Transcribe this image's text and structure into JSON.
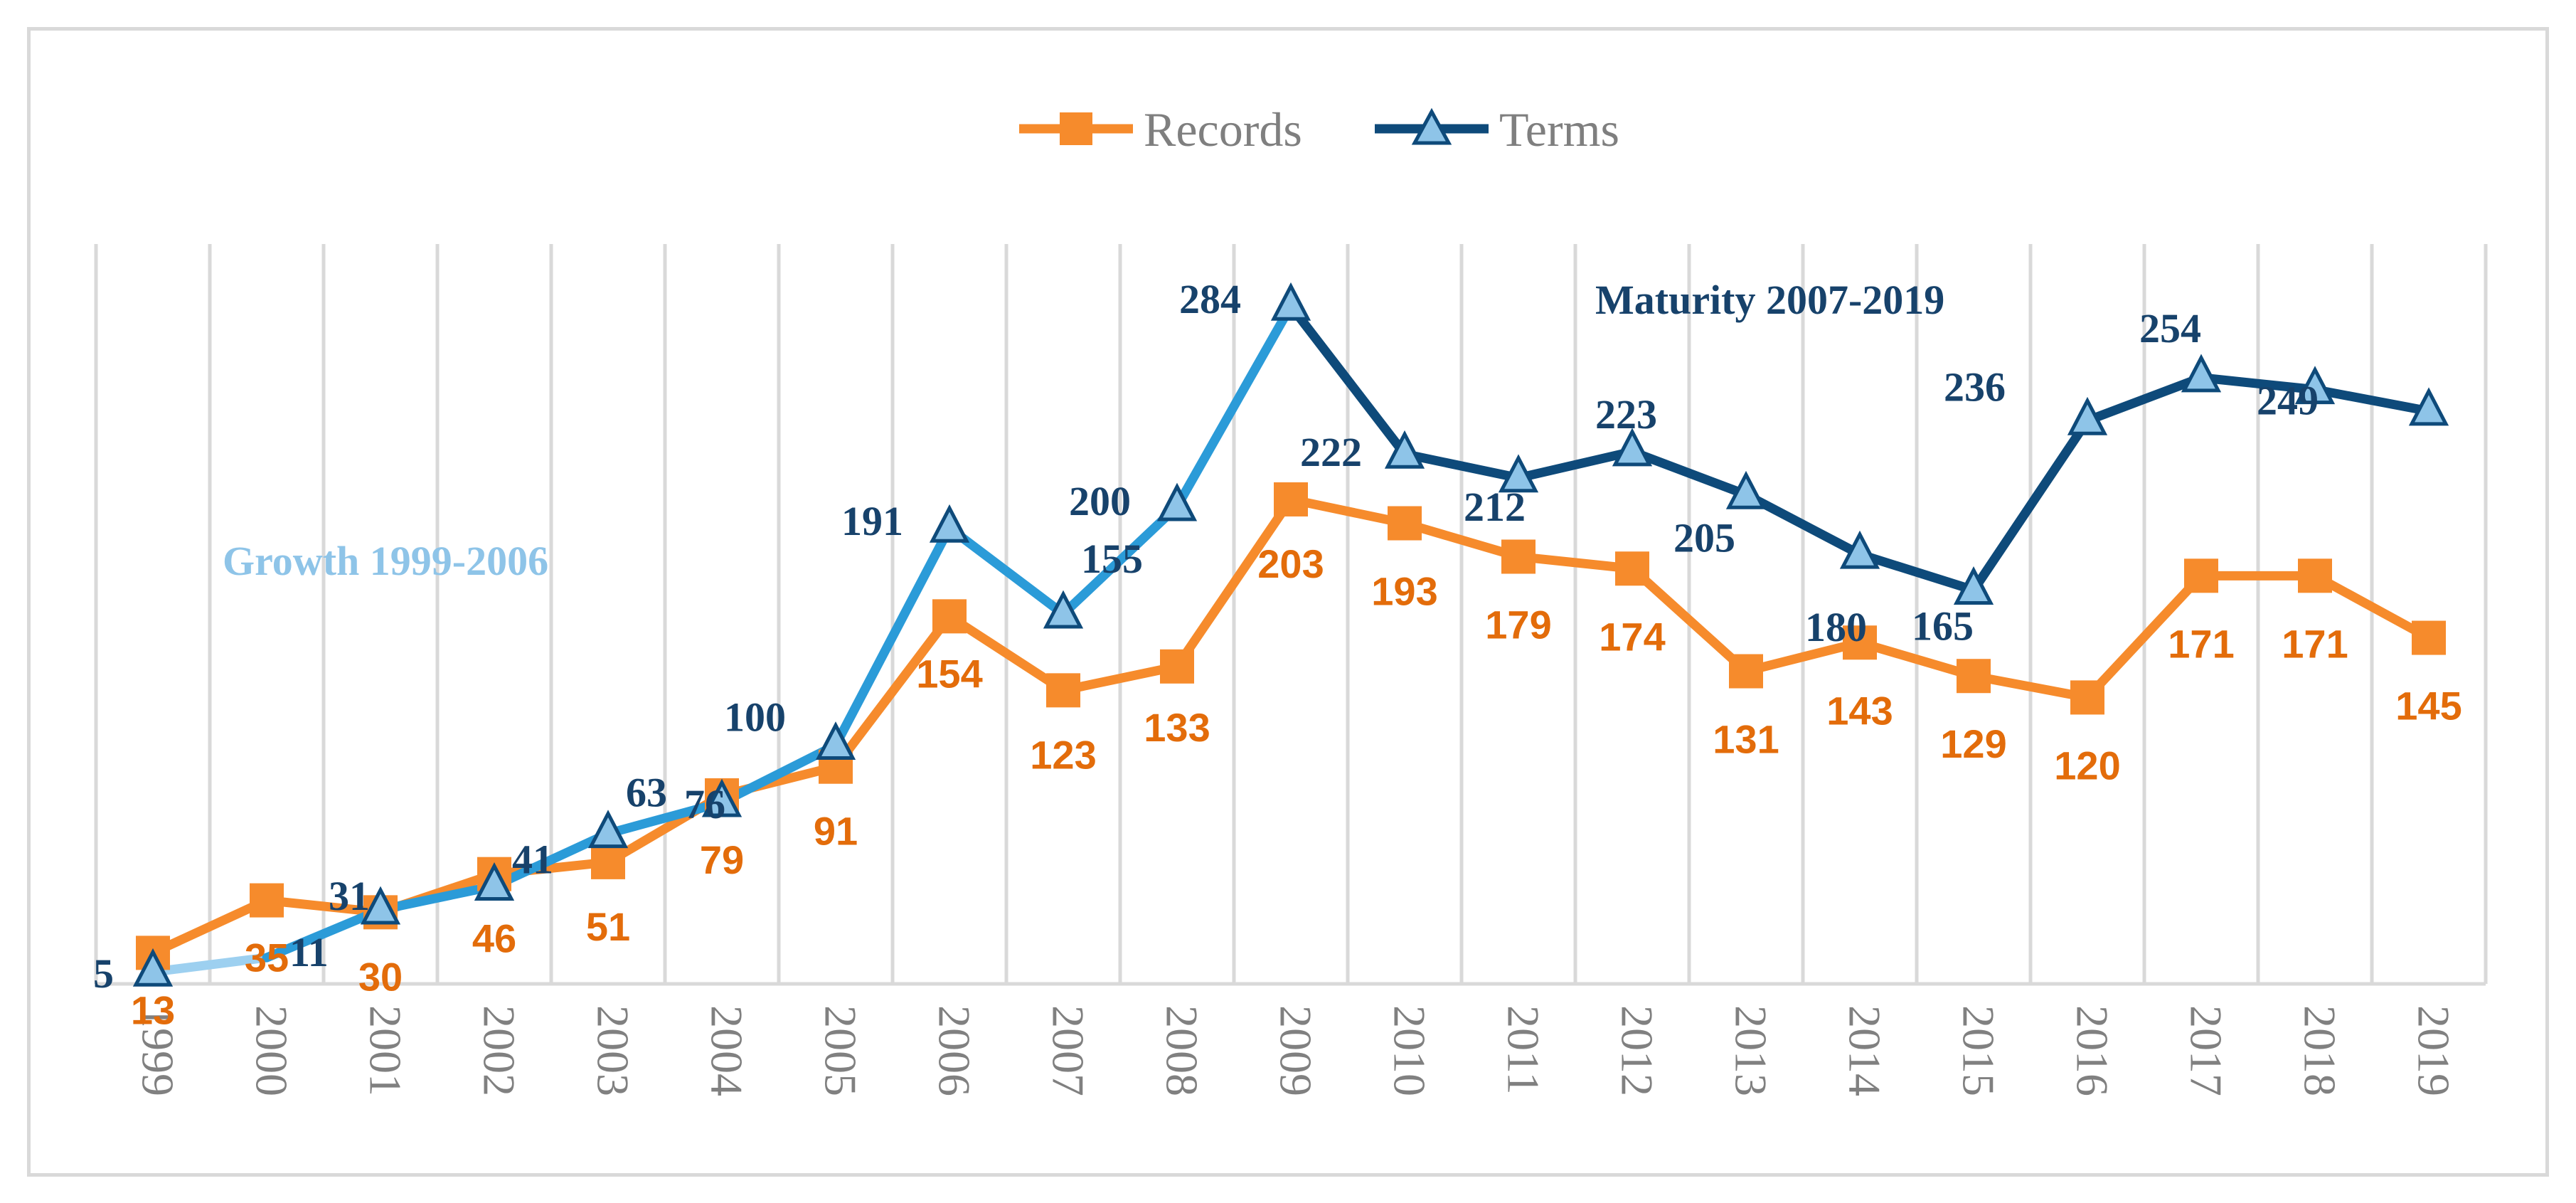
{
  "chart_data": {
    "type": "line",
    "categories": [
      "1999",
      "2000",
      "2001",
      "2002",
      "2003",
      "2004",
      "2005",
      "2006",
      "2007",
      "2008",
      "2009",
      "2010",
      "2011",
      "2012",
      "2013",
      "2014",
      "2015",
      "2016",
      "2017",
      "2018",
      "2019"
    ],
    "series": [
      {
        "name": "Records",
        "color": "#f68b2c",
        "label_color": "#e36c0a",
        "marker": "square",
        "values": [
          13,
          35,
          30,
          46,
          51,
          79,
          91,
          154,
          123,
          133,
          203,
          193,
          179,
          174,
          131,
          143,
          129,
          120,
          171,
          171,
          145
        ]
      },
      {
        "name": "Terms",
        "color": "#0e4a7a",
        "label_color": "#17426b",
        "marker": "triangle",
        "marker_fill": "#8ec4e8",
        "segment_colors": {
          "growth_light": "#9dd0f0",
          "growth": "#2b9bd8",
          "maturity": "#0e4a7a"
        },
        "values": [
          5,
          11,
          31,
          41,
          63,
          76,
          100,
          191,
          155,
          200,
          284,
          222,
          212,
          223,
          205,
          180,
          165,
          236,
          254,
          249,
          240
        ]
      }
    ],
    "data_labels": {
      "Records": [
        "13",
        "35",
        "30",
        "46",
        "51",
        "79",
        "91",
        "154",
        "123",
        "133",
        "203",
        "193",
        "179",
        "174",
        "131",
        "143",
        "129",
        "120",
        "171",
        "171",
        "145"
      ],
      "Terms": [
        "5",
        "11",
        "31",
        "41",
        "63",
        "76",
        "100",
        "191",
        "155",
        "200",
        "284",
        "222",
        "212",
        "223",
        "205",
        "180",
        "165",
        "236",
        "254",
        "249",
        ""
      ]
    },
    "annotations": [
      "Growth 1999-2006",
      "Maturity 2007-2019"
    ],
    "legend": [
      "Records",
      "Terms"
    ],
    "legend_position": "top-center",
    "ylim": [
      0,
      310
    ],
    "grid": "vertical",
    "title": "",
    "xlabel": "",
    "ylabel": ""
  }
}
